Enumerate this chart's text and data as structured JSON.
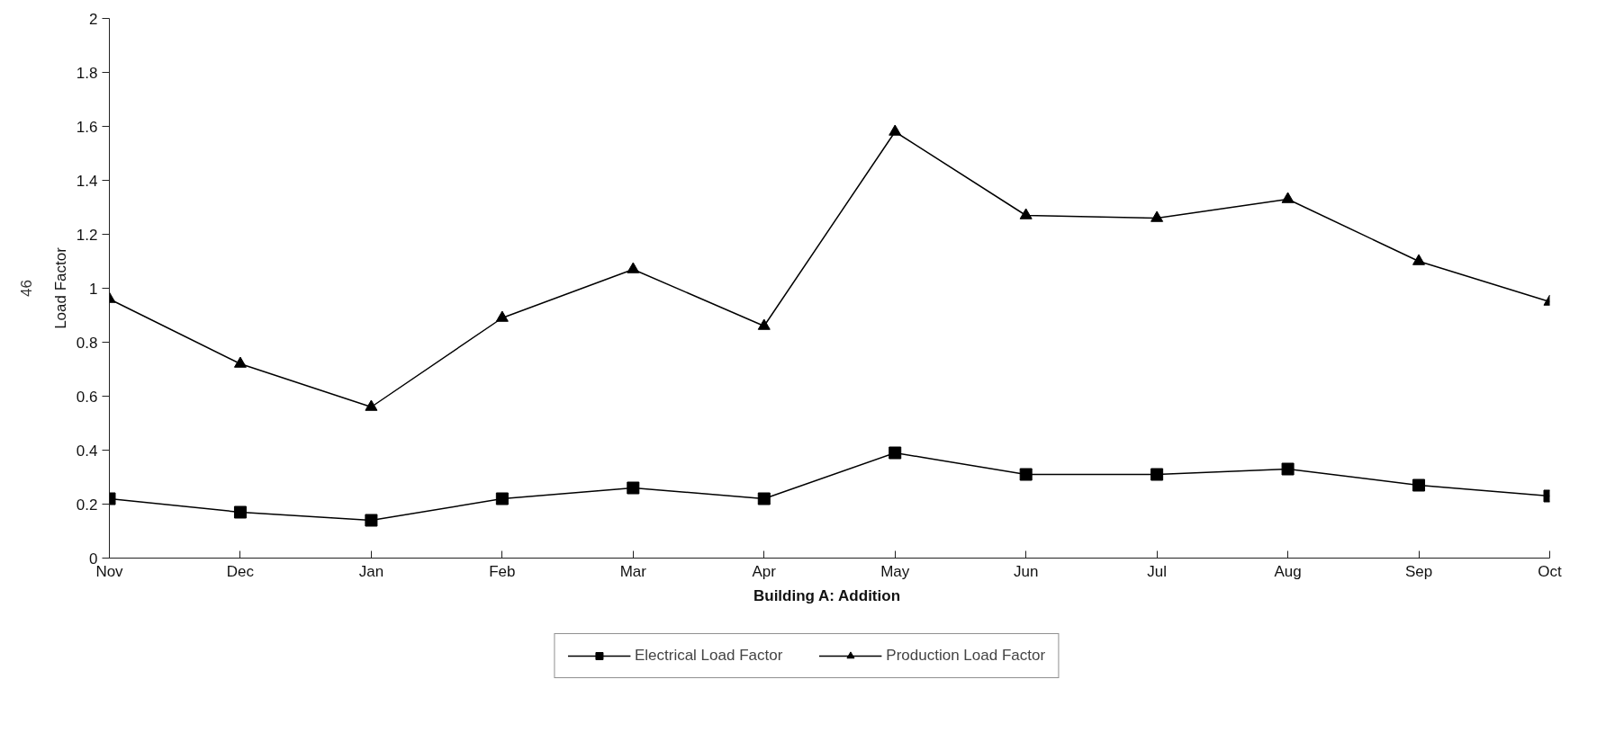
{
  "chart_data": {
    "type": "line",
    "xlabel": "Building A:  Addition",
    "ylabel": "Load Factor",
    "categories": [
      "Nov",
      "Dec",
      "Jan",
      "Feb",
      "Mar",
      "Apr",
      "May",
      "Jun",
      "Jul",
      "Aug",
      "Sep",
      "Oct"
    ],
    "series": [
      {
        "name": "Electrical Load Factor",
        "color": "#000000",
        "marker": "square",
        "values": [
          0.22,
          0.17,
          0.14,
          0.22,
          0.26,
          0.22,
          0.39,
          0.31,
          0.31,
          0.33,
          0.27,
          0.23
        ]
      },
      {
        "name": "Production Load Factor",
        "color": "#000000",
        "marker": "triangle",
        "values": [
          0.96,
          0.72,
          0.56,
          0.89,
          1.07,
          0.86,
          1.58,
          1.27,
          1.26,
          1.33,
          1.1,
          0.95
        ]
      }
    ],
    "ylim": [
      0,
      2
    ],
    "yticks": [
      0,
      0.2,
      0.4,
      0.6,
      0.8,
      1,
      1.2,
      1.4,
      1.6,
      1.8,
      2
    ],
    "grid": false,
    "legend": "bottom",
    "line_style": "solid",
    "annotations": [
      "46"
    ]
  }
}
